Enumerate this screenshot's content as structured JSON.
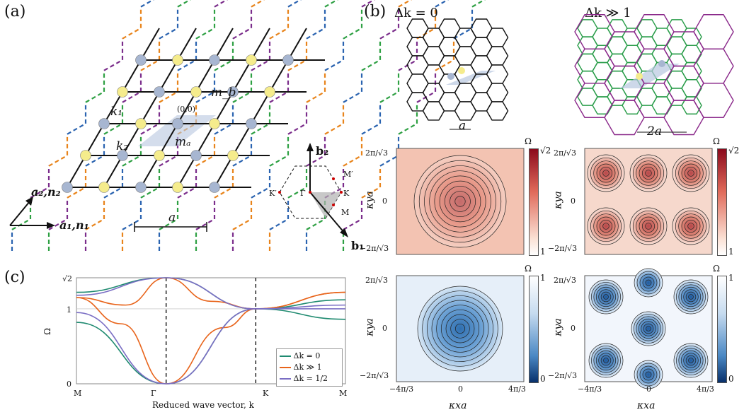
{
  "panels": {
    "a": "(a)",
    "b": "(b)",
    "c": "(c)"
  },
  "lattice": {
    "label_a1": "a₁,n₁",
    "label_a2": "a₂,n₂",
    "label_k1": "k₁",
    "label_k2": "k₂",
    "label_ma": "mₐ",
    "label_mb": "m_b",
    "label_origin": "(0,0)",
    "scale_a": "a"
  },
  "bz": {
    "b1": "b₁",
    "b2": "b₂",
    "gamma": "Γ",
    "K": "K",
    "Kp": "K′",
    "M": "M",
    "Mp": "M′"
  },
  "b_panel": {
    "left_title": "Δk = 0",
    "right_title": "Δk ≫ 1",
    "scale_left": "a",
    "scale_right": "2a",
    "omega": "Ω",
    "top_cbar_max": "√2",
    "top_cbar_min": "1",
    "bot_cbar_max": "1",
    "bot_cbar_min": "0",
    "yticks": [
      "2π/√3",
      "0",
      "−2π/√3"
    ],
    "xticks": [
      "−4π/3",
      "0",
      "4π/3"
    ],
    "ylabel": "κya",
    "xlabel": "κxa"
  },
  "chart_data": {
    "type": "line",
    "xlabel": "Reduced wave vector, k",
    "ylabel": "Ω",
    "categories": [
      "M",
      "Γ",
      "K",
      "M"
    ],
    "yticks": [
      "0",
      "1",
      "√2"
    ],
    "ylim": [
      0,
      1.414
    ],
    "series": [
      {
        "name": "Δk = 0",
        "color": "#1f8a70",
        "upper": [
          [
            0,
            1.22
          ],
          [
            1,
            1.414
          ],
          [
            2,
            1.0
          ],
          [
            3,
            1.12
          ]
        ],
        "lower": [
          [
            0,
            0.82
          ],
          [
            1,
            0.0
          ],
          [
            2,
            1.0
          ],
          [
            3,
            0.86
          ]
        ]
      },
      {
        "name": "Δk ≫ 1",
        "color": "#e8641b",
        "upper": [
          [
            0,
            1.15
          ],
          [
            0.55,
            1.05
          ],
          [
            1,
            1.414
          ],
          [
            1.5,
            1.1
          ],
          [
            2,
            1.0
          ],
          [
            3,
            1.22
          ]
        ],
        "lower": [
          [
            0,
            1.15
          ],
          [
            0.5,
            0.8
          ],
          [
            1,
            0.0
          ],
          [
            1.65,
            0.75
          ],
          [
            2,
            1.0
          ],
          [
            3,
            1.22
          ]
        ]
      },
      {
        "name": "Δk = 1/2",
        "color": "#7a6ec4",
        "upper": [
          [
            0,
            1.18
          ],
          [
            1,
            1.414
          ],
          [
            2,
            1.0
          ],
          [
            3,
            1.05
          ]
        ],
        "lower": [
          [
            0,
            0.95
          ],
          [
            1,
            0.0
          ],
          [
            2,
            1.0
          ],
          [
            3,
            1.0
          ]
        ]
      }
    ]
  }
}
